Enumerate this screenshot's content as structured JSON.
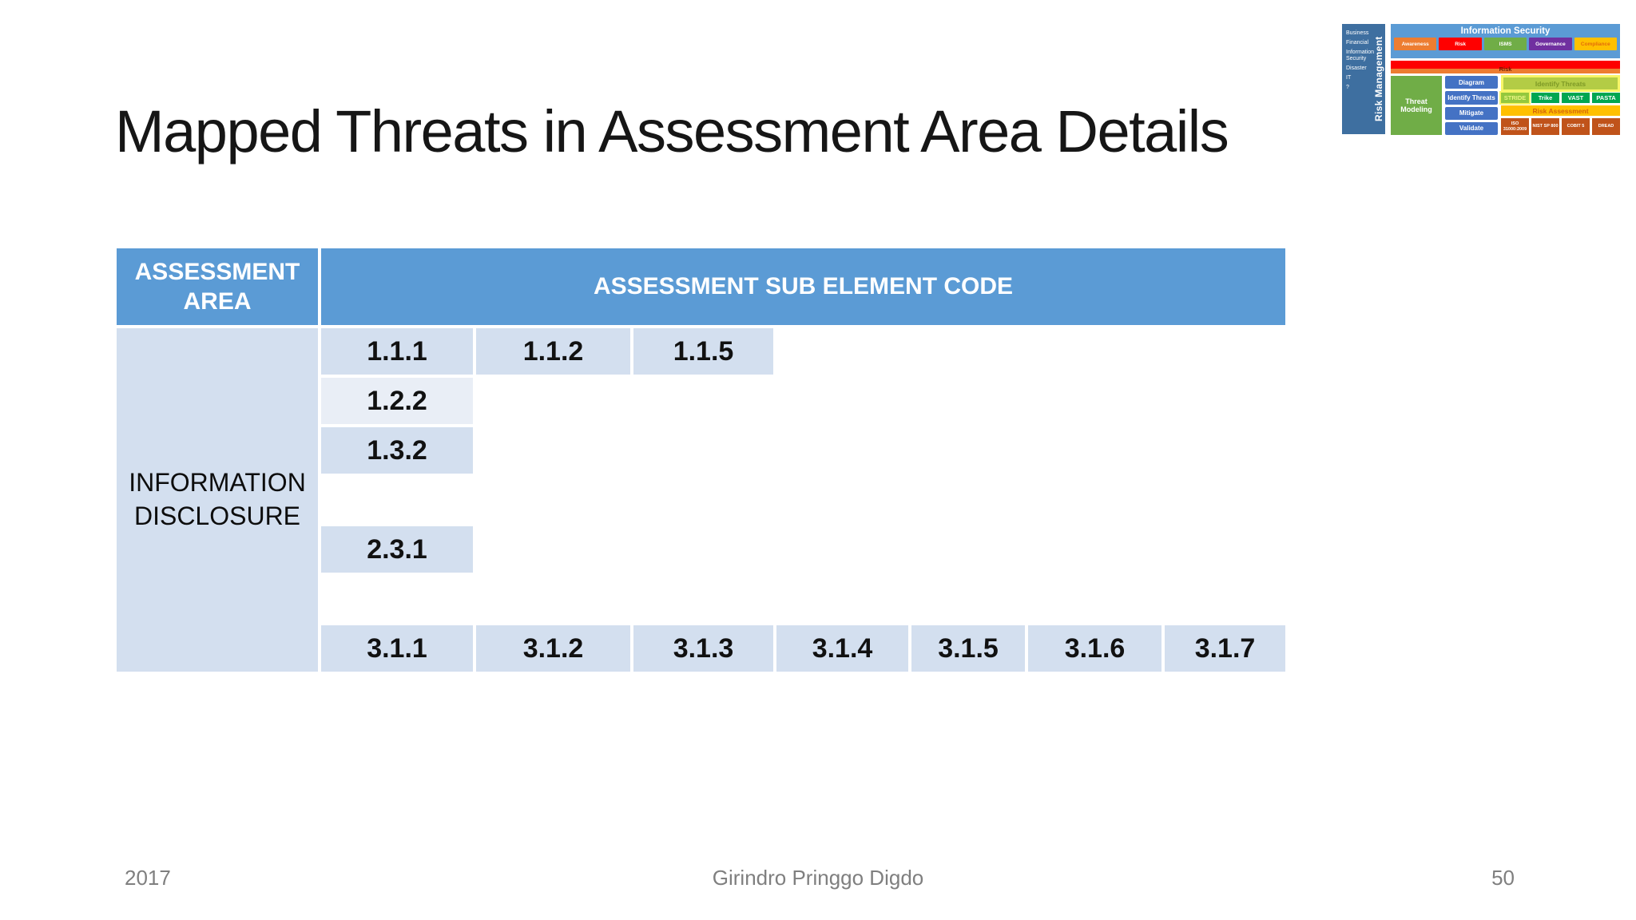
{
  "slide": {
    "title": "Mapped Threats in Assessment Area Details",
    "footer": {
      "year": "2017",
      "author": "Girindro Pringgo Digdo",
      "page": "50"
    }
  },
  "table": {
    "header": {
      "area": "ASSESSMENT AREA",
      "code": "ASSESSMENT SUB ELEMENT CODE"
    },
    "area_label": "INFORMATION DISCLOSURE",
    "row_bands": [
      "dark",
      "light",
      "dark",
      "light",
      "dark",
      "light",
      "dark"
    ],
    "rows": [
      [
        "1.1.1",
        "1.1.2",
        "1.1.5",
        "",
        "",
        "",
        ""
      ],
      [
        "1.2.2",
        "",
        "",
        "",
        "",
        "",
        ""
      ],
      [
        "1.3.2",
        "",
        "",
        "",
        "",
        "",
        ""
      ],
      [
        "",
        "",
        "",
        "",
        "",
        "",
        ""
      ],
      [
        "2.3.1",
        "",
        "",
        "",
        "",
        "",
        ""
      ],
      [
        "",
        "",
        "",
        "",
        "",
        "",
        ""
      ],
      [
        "3.1.1",
        "3.1.2",
        "3.1.3",
        "3.1.4",
        "3.1.5",
        "3.1.6",
        "3.1.7"
      ]
    ],
    "colors": {
      "header_bg": "#5B9BD5",
      "band_dark": "#D3DFEF",
      "band_light": "#E9EEF6",
      "empty": "#FFFFFF"
    }
  },
  "corner_diagram": {
    "risk_management": {
      "vertical_label": "Risk Management",
      "items": [
        "Business",
        "Financial",
        "Information Security",
        "Disaster",
        "IT",
        "?"
      ]
    },
    "information_security": {
      "title": "Information Security",
      "pillars": [
        {
          "label": "Awareness",
          "color": "#ED7D31",
          "text": "#FFFFFF"
        },
        {
          "label": "Risk",
          "color": "#FF0000",
          "text": "#FFFFFF"
        },
        {
          "label": "ISMS",
          "color": "#70AD47",
          "text": "#FFFFFF"
        },
        {
          "label": "Governance",
          "color": "#7030A0",
          "text": "#FFFFFF"
        },
        {
          "label": "Compliance",
          "color": "#FFC000",
          "text": "#E36C0A"
        }
      ]
    },
    "risk_bar_label": "Risk",
    "threat_modeling": {
      "label": "Threat Modeling",
      "steps": [
        "Diagram",
        "Identify Threats",
        "Mitigate",
        "Validate"
      ]
    },
    "identify_threats_label": "Identify Threats",
    "methods": [
      {
        "label": "STRIDE",
        "highlighted": true
      },
      {
        "label": "Trike",
        "highlighted": false
      },
      {
        "label": "VAST",
        "highlighted": false
      },
      {
        "label": "PASTA",
        "highlighted": false
      }
    ],
    "risk_assessment_label": "Risk Assessment",
    "frameworks": [
      "ISO 31000:2009",
      "NIST SP 800",
      "COBIT 5",
      "DREAD"
    ]
  }
}
